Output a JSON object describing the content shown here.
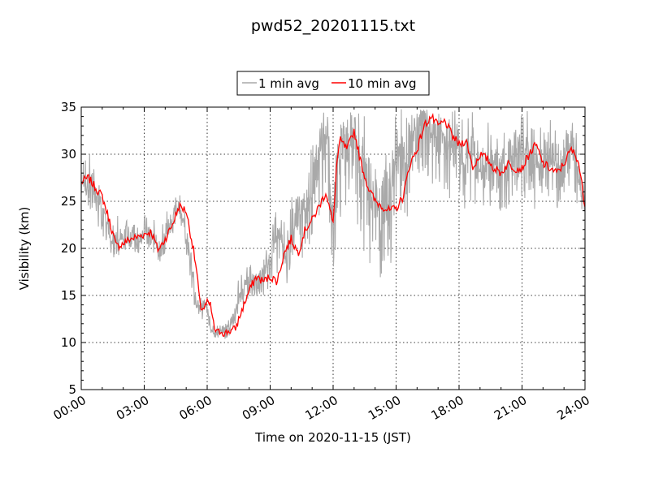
{
  "chart_data": {
    "type": "line",
    "title": "pwd52_20201115.txt",
    "xlabel": "Time on 2020-11-15 (JST)",
    "ylabel": "Visibility (km)",
    "xlim": [
      "2020-11-15 00:00",
      "2020-11-16 00:00"
    ],
    "ylim": [
      5,
      35
    ],
    "x_ticks": [
      "00:00",
      "03:00",
      "06:00",
      "09:00",
      "12:00",
      "15:00",
      "18:00",
      "21:00",
      "24:00"
    ],
    "y_ticks": [
      5,
      10,
      15,
      20,
      25,
      30,
      35
    ],
    "grid": true,
    "legend_position": "top-center",
    "series": [
      {
        "name": "1 min avg",
        "color": "#a9a9a9",
        "sampling": "1 min",
        "x": [
          "00:00",
          "00:15",
          "00:30",
          "00:45",
          "01:00",
          "01:15",
          "01:30",
          "01:45",
          "02:00",
          "02:15",
          "02:30",
          "02:45",
          "03:00",
          "03:15",
          "03:30",
          "03:45",
          "04:00",
          "04:15",
          "04:30",
          "04:45",
          "05:00",
          "05:15",
          "05:30",
          "05:45",
          "06:00",
          "06:15",
          "06:30",
          "06:45",
          "07:00",
          "07:15",
          "07:30",
          "07:45",
          "08:00",
          "08:15",
          "08:30",
          "08:45",
          "09:00",
          "09:15",
          "09:30",
          "09:45",
          "10:00",
          "10:15",
          "10:30",
          "10:45",
          "11:00",
          "11:15",
          "11:30",
          "11:45",
          "12:00",
          "12:15",
          "12:30",
          "12:45",
          "13:00",
          "13:15",
          "13:30",
          "13:45",
          "14:00",
          "14:15",
          "14:30",
          "14:45",
          "15:00",
          "15:15",
          "15:30",
          "15:45",
          "16:00",
          "16:15",
          "16:30",
          "16:45",
          "17:00",
          "17:15",
          "17:30",
          "17:45",
          "18:00",
          "18:15",
          "18:30",
          "18:45",
          "19:00",
          "19:15",
          "19:30",
          "19:45",
          "20:00",
          "20:15",
          "20:30",
          "20:45",
          "21:00",
          "21:15",
          "21:30",
          "21:45",
          "22:00",
          "22:15",
          "22:30",
          "22:45",
          "23:00",
          "23:15",
          "23:30",
          "23:45",
          "24:00"
        ],
        "y_center": [
          27.0,
          26.8,
          26.0,
          25.4,
          24.5,
          22.5,
          20.3,
          20.8,
          21.0,
          21.4,
          21.0,
          20.5,
          21.5,
          22.0,
          20.8,
          20.2,
          21.5,
          22.5,
          24.3,
          24.0,
          21.8,
          18.5,
          13.8,
          14.0,
          13.8,
          11.0,
          11.2,
          11.0,
          11.6,
          12.5,
          14.5,
          15.8,
          16.5,
          17.0,
          16.5,
          17.5,
          18.5,
          20.5,
          21.0,
          19.5,
          21.5,
          22.5,
          23.5,
          24.5,
          25.5,
          29.0,
          31.5,
          31.0,
          23.0,
          29.5,
          32.5,
          30.5,
          32.0,
          29.0,
          27.5,
          25.5,
          24.5,
          24.0,
          24.5,
          25.0,
          29.0,
          31.5,
          28.5,
          31.0,
          33.5,
          34.5,
          33.0,
          32.0,
          33.5,
          32.0,
          30.5,
          31.5,
          31.0,
          28.5,
          30.5,
          29.5,
          28.0,
          28.5,
          29.5,
          28.5,
          28.0,
          28.5,
          30.0,
          31.5,
          30.0,
          31.0,
          28.5,
          28.5,
          29.0,
          30.0,
          29.0,
          28.5,
          30.0,
          30.5,
          29.5,
          27.0,
          24.5
        ],
        "y_range_min": [
          25.0,
          24.5,
          23.5,
          22.5,
          21.5,
          19.5,
          18.5,
          19.0,
          19.5,
          20.0,
          19.5,
          19.0,
          19.5,
          20.0,
          19.0,
          18.5,
          19.5,
          20.5,
          22.5,
          22.0,
          19.5,
          15.5,
          12.5,
          12.5,
          12.0,
          10.5,
          10.5,
          10.2,
          10.5,
          11.0,
          12.5,
          14.0,
          14.5,
          15.0,
          14.5,
          15.0,
          16.0,
          17.0,
          17.5,
          16.0,
          17.5,
          18.0,
          18.5,
          19.0,
          19.5,
          22.0,
          24.0,
          23.5,
          17.5,
          21.5,
          24.5,
          22.5,
          23.0,
          21.0,
          19.5,
          18.0,
          17.5,
          16.5,
          17.0,
          18.0,
          21.0,
          23.5,
          22.0,
          25.0,
          27.5,
          28.0,
          27.0,
          26.5,
          27.0,
          26.5,
          25.0,
          26.0,
          25.5,
          24.0,
          25.0,
          24.5,
          23.5,
          24.0,
          24.5,
          24.0,
          23.5,
          24.0,
          25.0,
          26.0,
          25.0,
          25.5,
          24.0,
          24.0,
          24.5,
          24.5,
          24.0,
          24.0,
          24.5,
          25.0,
          24.5,
          23.5,
          23.5
        ],
        "y_range_max": [
          29.0,
          29.5,
          30.5,
          27.5,
          26.5,
          24.5,
          23.0,
          23.5,
          23.0,
          23.5,
          23.0,
          22.5,
          23.5,
          24.0,
          23.0,
          22.5,
          24.0,
          25.5,
          26.5,
          25.5,
          23.5,
          20.5,
          15.0,
          15.0,
          14.5,
          12.0,
          12.0,
          11.8,
          12.5,
          14.0,
          17.0,
          17.5,
          19.0,
          19.5,
          18.5,
          19.5,
          21.0,
          24.5,
          25.0,
          23.0,
          25.5,
          27.5,
          28.5,
          29.5,
          31.5,
          35,
          35,
          35,
          27.5,
          35,
          35,
          35,
          35,
          35,
          34.0,
          32.0,
          31.0,
          30.5,
          31.0,
          31.5,
          35,
          35,
          34.0,
          35,
          35,
          35,
          35,
          35,
          35,
          35,
          34.5,
          35,
          35,
          33.0,
          35,
          34.5,
          32.5,
          33.0,
          35,
          33.0,
          32.5,
          33.0,
          34.5,
          35,
          34.0,
          35,
          33.0,
          33.0,
          33.5,
          34.5,
          33.5,
          33.0,
          34.0,
          34.5,
          33.5,
          30.5,
          26.0
        ]
      },
      {
        "name": "10 min avg",
        "color": "#ff0000",
        "x": [
          "00:00",
          "00:20",
          "00:40",
          "01:00",
          "01:20",
          "01:40",
          "02:00",
          "02:20",
          "02:40",
          "03:00",
          "03:20",
          "03:40",
          "04:00",
          "04:20",
          "04:40",
          "05:00",
          "05:10",
          "05:20",
          "05:30",
          "05:40",
          "05:50",
          "06:00",
          "06:10",
          "06:20",
          "06:30",
          "06:40",
          "06:50",
          "07:00",
          "07:20",
          "07:40",
          "08:00",
          "08:20",
          "08:40",
          "09:00",
          "09:20",
          "09:40",
          "10:00",
          "10:20",
          "10:40",
          "11:00",
          "11:20",
          "11:40",
          "12:00",
          "12:10",
          "12:20",
          "12:40",
          "13:00",
          "13:20",
          "13:40",
          "14:00",
          "14:20",
          "14:40",
          "15:00",
          "15:20",
          "15:40",
          "16:00",
          "16:20",
          "16:40",
          "17:00",
          "17:20",
          "17:40",
          "18:00",
          "18:20",
          "18:40",
          "19:00",
          "19:20",
          "19:40",
          "20:00",
          "20:20",
          "20:40",
          "21:00",
          "21:20",
          "21:40",
          "22:00",
          "22:20",
          "22:40",
          "23:00",
          "23:20",
          "23:40",
          "24:00"
        ],
        "y": [
          27.0,
          27.5,
          26.5,
          25.5,
          23.0,
          20.2,
          20.5,
          21.0,
          21.2,
          21.5,
          21.8,
          19.8,
          21.0,
          22.5,
          24.5,
          24.0,
          22.0,
          20.0,
          17.5,
          13.8,
          13.6,
          14.2,
          13.9,
          11.5,
          11.0,
          11.3,
          10.9,
          11.2,
          11.4,
          13.5,
          15.5,
          17.0,
          16.5,
          17.0,
          16.5,
          19.5,
          21.0,
          19.5,
          22.0,
          23.0,
          24.5,
          26.0,
          22.5,
          29.0,
          31.5,
          30.5,
          32.5,
          29.0,
          26.5,
          25.0,
          24.5,
          24.0,
          24.2,
          25.5,
          29.0,
          30.5,
          33.0,
          34.0,
          33.0,
          33.5,
          32.0,
          31.0,
          31.5,
          28.5,
          30.0,
          29.5,
          28.5,
          28.0,
          29.0,
          28.5,
          28.5,
          30.0,
          31.0,
          29.0,
          28.5,
          28.0,
          29.0,
          30.5,
          29.5,
          24.5
        ]
      }
    ]
  }
}
